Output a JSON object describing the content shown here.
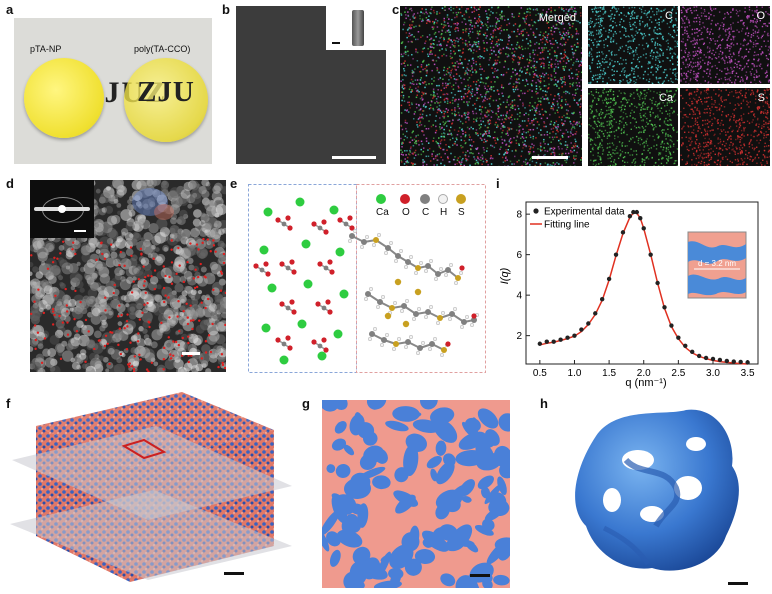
{
  "panels": {
    "a": {
      "label": "a",
      "disc_left": "pTA-NP",
      "disc_right": "poly(TA-CCO)",
      "background_text": "UZJUZ"
    },
    "b": {
      "label": "b"
    },
    "c": {
      "label": "c",
      "maps": [
        "Merged",
        "C",
        "O",
        "Ca",
        "S"
      ],
      "colors": {
        "C": "#4fd4d4",
        "O": "#c050c0",
        "Ca": "#50c050",
        "S": "#d03030"
      }
    },
    "d": {
      "label": "d"
    },
    "e": {
      "label": "e",
      "legend": [
        {
          "symbol": "Ca",
          "color": "#2ecc40"
        },
        {
          "symbol": "O",
          "color": "#d0202a"
        },
        {
          "symbol": "C",
          "color": "#808080"
        },
        {
          "symbol": "H",
          "color": "#f2f2f2"
        },
        {
          "symbol": "S",
          "color": "#c8a020"
        }
      ]
    },
    "f": {
      "label": "f"
    },
    "g": {
      "label": "g"
    },
    "h": {
      "label": "h"
    },
    "i": {
      "label": "i",
      "inset_text": "d = 3.2 nm"
    }
  },
  "chart_data": {
    "type": "scatter",
    "xlabel": "q (nm⁻¹)",
    "ylabel": "I(q)",
    "xlim": [
      0.3,
      3.65
    ],
    "ylim": [
      0.6,
      8.6
    ],
    "xticks": [
      0.5,
      1.0,
      1.5,
      2.0,
      2.5,
      3.0,
      3.5
    ],
    "yticks": [
      2,
      4,
      6,
      8
    ],
    "legend_placement": "top-left",
    "series": [
      {
        "name": "Experimental data",
        "kind": "points",
        "color": "#222222",
        "x": [
          0.5,
          0.6,
          0.7,
          0.8,
          0.9,
          1.0,
          1.1,
          1.2,
          1.3,
          1.4,
          1.5,
          1.6,
          1.7,
          1.8,
          1.85,
          1.9,
          1.95,
          2.0,
          2.1,
          2.2,
          2.3,
          2.4,
          2.5,
          2.6,
          2.7,
          2.8,
          2.9,
          3.0,
          3.1,
          3.2,
          3.3,
          3.4,
          3.5
        ],
        "y": [
          1.6,
          1.7,
          1.7,
          1.8,
          1.9,
          2.0,
          2.3,
          2.6,
          3.1,
          3.8,
          4.8,
          6.0,
          7.1,
          7.9,
          8.1,
          8.1,
          7.8,
          7.3,
          6.0,
          4.6,
          3.4,
          2.5,
          1.9,
          1.5,
          1.2,
          1.0,
          0.9,
          0.85,
          0.8,
          0.75,
          0.72,
          0.7,
          0.68
        ]
      },
      {
        "name": "Fitting line",
        "kind": "line",
        "color": "#e03020",
        "x": [
          0.5,
          0.6,
          0.7,
          0.8,
          0.9,
          1.0,
          1.1,
          1.2,
          1.3,
          1.4,
          1.5,
          1.6,
          1.7,
          1.8,
          1.85,
          1.9,
          1.95,
          2.0,
          2.1,
          2.2,
          2.3,
          2.4,
          2.5,
          2.6,
          2.7,
          2.8,
          2.9,
          3.0,
          3.1,
          3.2,
          3.3,
          3.4,
          3.5
        ],
        "y": [
          1.55,
          1.62,
          1.68,
          1.76,
          1.86,
          1.98,
          2.2,
          2.55,
          3.05,
          3.75,
          4.75,
          5.95,
          7.05,
          7.85,
          8.05,
          8.05,
          7.8,
          7.3,
          6.0,
          4.6,
          3.35,
          2.45,
          1.85,
          1.42,
          1.15,
          0.98,
          0.86,
          0.78,
          0.72,
          0.68,
          0.65,
          0.62,
          0.6
        ]
      }
    ]
  }
}
